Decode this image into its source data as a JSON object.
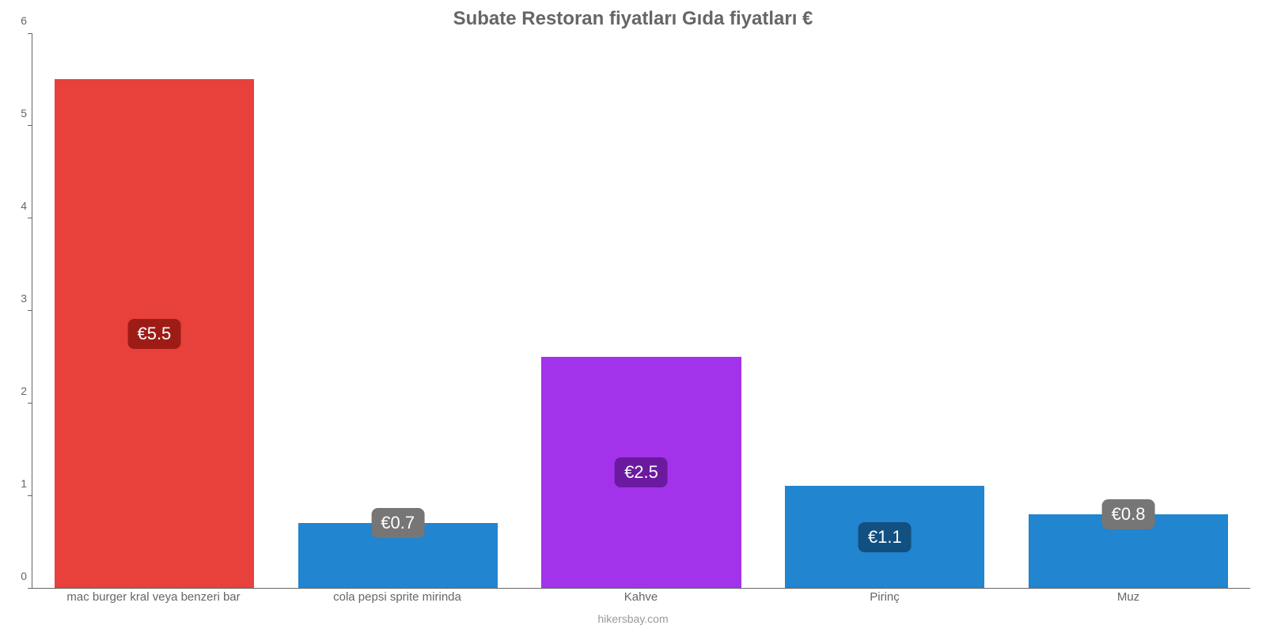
{
  "chart": {
    "type": "bar",
    "title": "Subate Restoran fiyatları Gıda fiyatları €",
    "title_color": "#666666",
    "title_fontsize": 24,
    "background_color": "#ffffff",
    "axis_color": "#666666",
    "label_color": "#666666",
    "label_fontsize": 15,
    "ylim_min": 0,
    "ylim_max": 6,
    "yticks": [
      0,
      1,
      2,
      3,
      4,
      5,
      6
    ],
    "bar_width_pct": 82,
    "value_prefix": "€",
    "value_label_fontsize": 22,
    "value_label_text_color": "#ffffff",
    "value_label_border_radius": 8,
    "footer": "hikersbay.com",
    "footer_color": "#999999",
    "categories": [
      "mac burger kral veya benzeri bar",
      "cola pepsi sprite mirinda",
      "Kahve",
      "Pirinç",
      "Muz"
    ],
    "values": [
      5.5,
      0.7,
      2.5,
      1.1,
      0.8
    ],
    "value_labels": [
      "€5.5",
      "€0.7",
      "€2.5",
      "€1.1",
      "€0.8"
    ],
    "bar_colors": [
      "#e8403a",
      "#2185d0",
      "#a333eb",
      "#2185d0",
      "#2185d0"
    ],
    "value_badge_colors": [
      "#9e1c16",
      "#115080",
      "#6b1aa0",
      "#115080",
      "#115080"
    ],
    "override_badge_color_when_short": "#767676",
    "short_threshold": 1.0
  }
}
